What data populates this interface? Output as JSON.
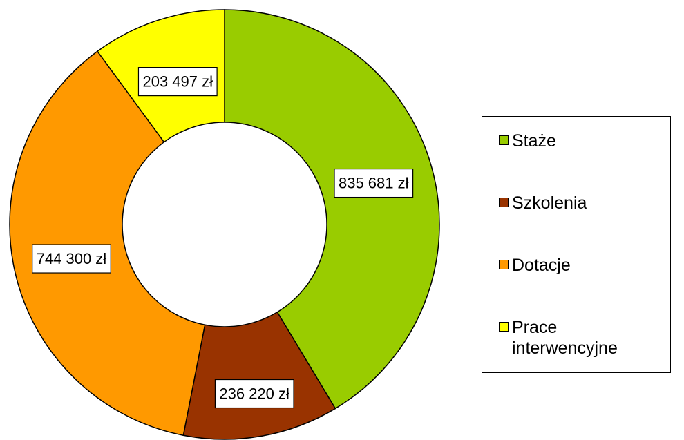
{
  "chart_data": {
    "type": "pie",
    "variant": "donut",
    "title": "",
    "categories": [
      "Staże",
      "Szkolenia",
      "Dotacje",
      "Prace interwencyjne"
    ],
    "values": [
      835681,
      236220,
      744300,
      203497
    ],
    "data_labels": [
      "835 681 zł",
      "236 220 zł",
      "744 300 zł",
      "203 497 zł"
    ],
    "colors": [
      "#99cc00",
      "#993300",
      "#ff9900",
      "#ffff00"
    ],
    "start_angle": "12 o'clock",
    "direction": "clockwise",
    "legend_position": "right"
  },
  "legend": {
    "items": [
      {
        "label": "Staże",
        "color": "#99cc00"
      },
      {
        "label": "Szkolenia",
        "color": "#993300"
      },
      {
        "label": "Dotacje",
        "color": "#ff9900"
      },
      {
        "label": "Prace interwencyjne",
        "color": "#ffff00"
      }
    ]
  }
}
